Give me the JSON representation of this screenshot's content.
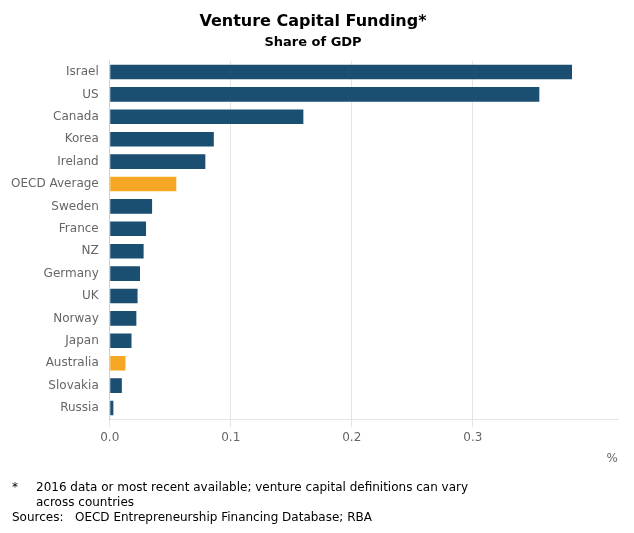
{
  "chart_data": {
    "type": "bar",
    "orientation": "horizontal",
    "title": "Venture Capital Funding*",
    "subtitle": "Share of GDP",
    "categories": [
      "Israel",
      "US",
      "Canada",
      "Korea",
      "Ireland",
      "OECD Average",
      "Sweden",
      "France",
      "NZ",
      "Germany",
      "UK",
      "Norway",
      "Japan",
      "Australia",
      "Slovakia",
      "Russia"
    ],
    "values": [
      0.382,
      0.355,
      0.16,
      0.086,
      0.079,
      0.055,
      0.035,
      0.03,
      0.028,
      0.025,
      0.023,
      0.022,
      0.018,
      0.013,
      0.01,
      0.003
    ],
    "colors": [
      "#1a4f72",
      "#1a4f72",
      "#1a4f72",
      "#1a4f72",
      "#1a4f72",
      "#f5a623",
      "#1a4f72",
      "#1a4f72",
      "#1a4f72",
      "#1a4f72",
      "#1a4f72",
      "#1a4f72",
      "#1a4f72",
      "#f5a623",
      "#1a4f72",
      "#1a4f72"
    ],
    "xlabel": "%",
    "xlim": [
      0,
      0.42
    ],
    "xticks": [
      {
        "value": 0.0,
        "label": "0.0"
      },
      0.1,
      0.2,
      0.3
    ],
    "grid": true,
    "annotations": [
      [
        "*",
        "2016 data or most recent available; venture capital definitions can vary\nacross countries"
      ],
      [
        "Sources:   OECD Entrepreneurship Financing Database; RBA"
      ]
    ]
  }
}
